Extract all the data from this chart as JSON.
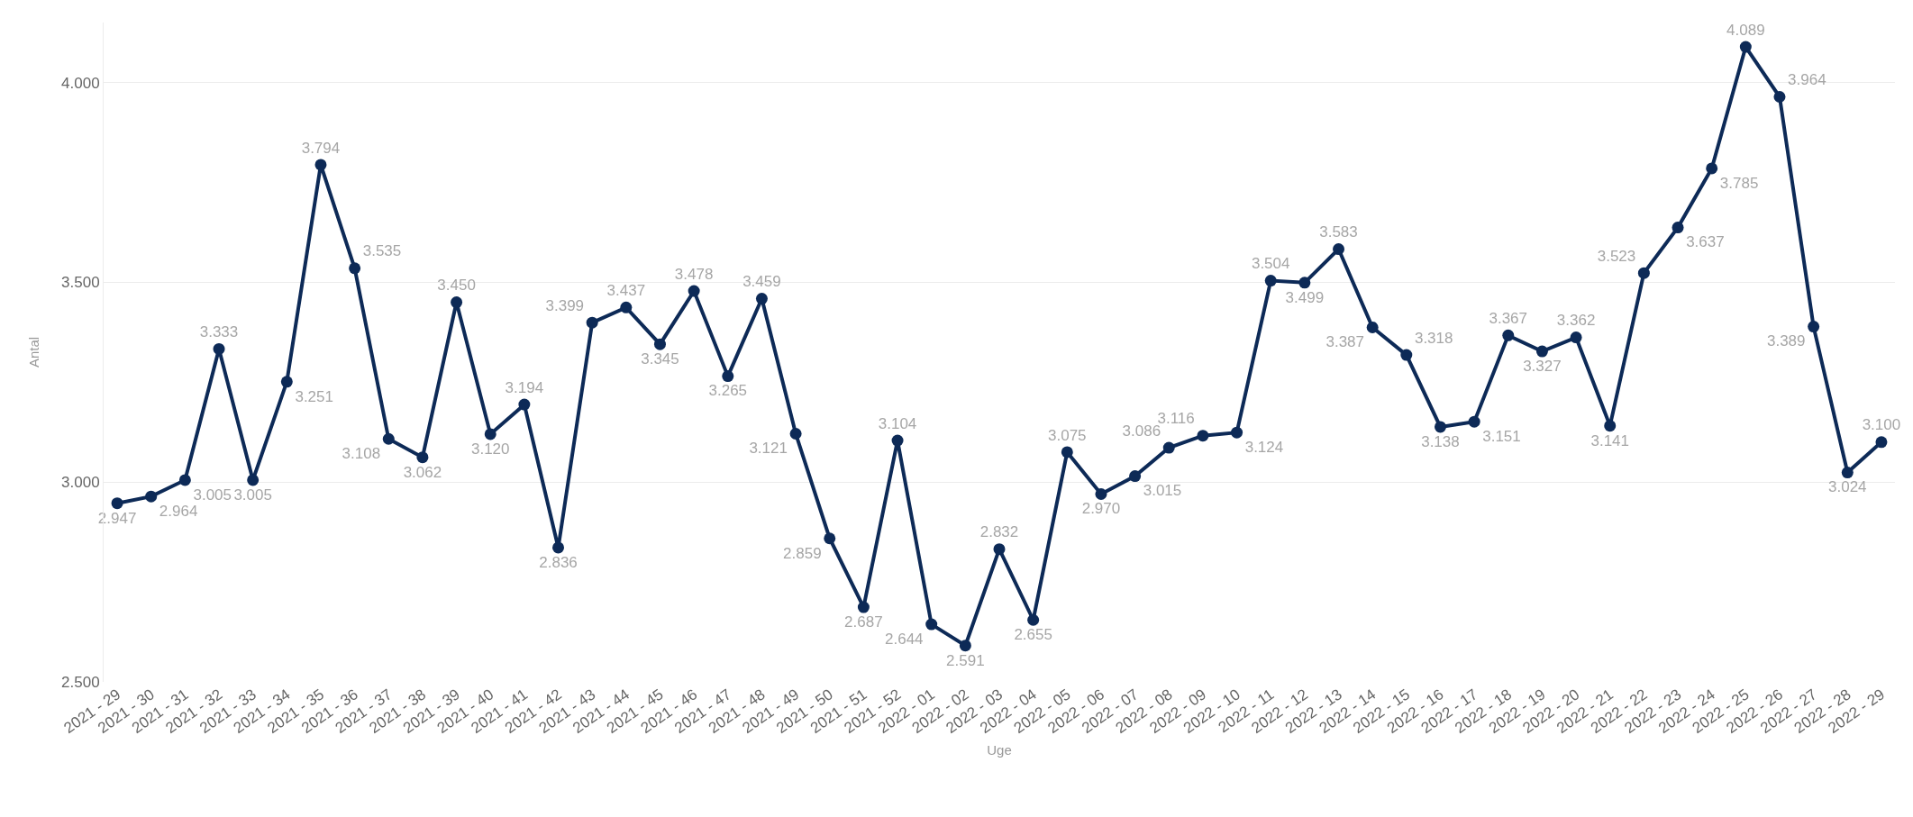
{
  "chart_data": {
    "type": "line",
    "xlabel": "Uge",
    "ylabel": "Antal",
    "categories": [
      "2021 - 29",
      "2021 - 30",
      "2021 - 31",
      "2021 - 32",
      "2021 - 33",
      "2021 - 34",
      "2021 - 35",
      "2021 - 36",
      "2021 - 37",
      "2021 - 38",
      "2021 - 39",
      "2021 - 40",
      "2021 - 41",
      "2021 - 42",
      "2021 - 43",
      "2021 - 44",
      "2021 - 45",
      "2021 - 46",
      "2021 - 47",
      "2021 - 48",
      "2021 - 49",
      "2021 - 50",
      "2021 - 51",
      "2021 - 52",
      "2022 - 01",
      "2022 - 02",
      "2022 - 03",
      "2022 - 04",
      "2022 - 05",
      "2022 - 06",
      "2022 - 07",
      "2022 - 08",
      "2022 - 09",
      "2022 - 10",
      "2022 - 11",
      "2022 - 12",
      "2022 - 13",
      "2022 - 14",
      "2022 - 15",
      "2022 - 16",
      "2022 - 17",
      "2022 - 18",
      "2022 - 19",
      "2022 - 20",
      "2022 - 21",
      "2022 - 22",
      "2022 - 23",
      "2022 - 24",
      "2022 - 25",
      "2022 - 26",
      "2022 - 27",
      "2022 - 28",
      "2022 - 29"
    ],
    "series": [
      {
        "color": "#0d2a57",
        "values": [
          2947,
          2964,
          3005,
          3333,
          3005,
          3251,
          3794,
          3535,
          3108,
          3062,
          3450,
          3120,
          3194,
          2836,
          3399,
          3437,
          3345,
          3478,
          3265,
          3459,
          3121,
          2859,
          2687,
          3104,
          2644,
          2591,
          2832,
          2655,
          3075,
          2970,
          3015,
          3086,
          3116,
          3124,
          3504,
          3499,
          3583,
          3387,
          3318,
          3138,
          3151,
          3367,
          3327,
          3362,
          3141,
          3523,
          3637,
          3785,
          4089,
          3964,
          3389,
          3024,
          3100
        ],
        "value_labels": [
          "2.947",
          "2.964",
          "3.005",
          "3.333",
          "3.005",
          "3.251",
          "3.794",
          "3.535",
          "3.108",
          "3.062",
          "3.450",
          "3.120",
          "3.194",
          "2.836",
          "3.399",
          "3.437",
          "3.345",
          "3.478",
          "3.265",
          "3.459",
          "3.121",
          "2.859",
          "2.687",
          "3.104",
          "2.644",
          "2.591",
          "2.832",
          "2.655",
          "3.075",
          "2.970",
          "3.015",
          "3.086",
          "3.116",
          "3.124",
          "3.504",
          "3.499",
          "3.583",
          "3.387",
          "3.318",
          "3.138",
          "3.151",
          "3.367",
          "3.327",
          "3.362",
          "3.141",
          "3.523",
          "3.637",
          "3.785",
          "4.089",
          "3.964",
          "3.389",
          "3.024",
          "3.100"
        ]
      }
    ],
    "ylim": [
      2500,
      4150
    ],
    "yticks": [
      {
        "value": 2500,
        "label": "2.500"
      },
      {
        "value": 3000,
        "label": "3.000"
      },
      {
        "value": 3500,
        "label": "3.500"
      },
      {
        "value": 4000,
        "label": "4.000"
      }
    ],
    "grid": "y",
    "marker": "circle",
    "line_style": "solid",
    "legend": false
  }
}
